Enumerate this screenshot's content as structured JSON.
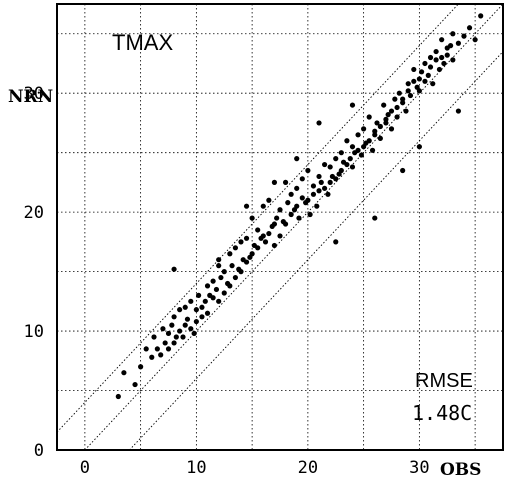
{
  "chart_data": {
    "type": "scatter",
    "title": "TMAX",
    "xlabel": "OBS",
    "ylabel": "NRN",
    "xlim": [
      -2.5,
      37.5
    ],
    "ylim": [
      0,
      37.5
    ],
    "x_ticks": [
      "0",
      "10",
      "20",
      "30"
    ],
    "y_ticks": [
      "0",
      "10",
      "20",
      "30"
    ],
    "grid": true,
    "reference_lines": [
      "1:1",
      "+4",
      "-4"
    ],
    "stat_label": "RMSE",
    "stat_value": "1.48C",
    "series": [
      {
        "x": [
          3.0,
          3.5,
          4.5,
          5.0,
          5.5,
          6.0,
          6.2,
          6.5,
          6.8,
          7.0,
          7.2,
          7.5,
          7.5,
          7.8,
          8.0,
          8.0,
          8.2,
          8.5,
          8.5,
          8.8,
          9.0,
          9.0,
          9.2,
          9.5,
          9.5,
          9.8,
          10.0,
          10.0,
          10.2,
          10.5,
          10.5,
          10.8,
          11.0,
          11.0,
          11.2,
          11.5,
          11.5,
          11.8,
          12.0,
          12.0,
          12.2,
          12.5,
          12.5,
          12.8,
          13.0,
          13.0,
          13.2,
          13.5,
          13.5,
          13.8,
          14.0,
          14.0,
          14.2,
          14.5,
          14.5,
          14.8,
          15.0,
          15.0,
          15.2,
          15.5,
          15.5,
          15.8,
          16.0,
          16.0,
          16.2,
          16.5,
          16.5,
          16.8,
          17.0,
          17.0,
          17.2,
          17.5,
          17.5,
          17.8,
          18.0,
          18.0,
          18.2,
          18.5,
          18.5,
          18.8,
          19.0,
          19.0,
          19.2,
          19.5,
          19.5,
          19.8,
          20.0,
          20.0,
          20.2,
          20.5,
          20.5,
          20.8,
          21.0,
          21.0,
          21.2,
          21.5,
          21.5,
          21.8,
          22.0,
          22.0,
          22.2,
          22.5,
          22.5,
          22.8,
          23.0,
          23.0,
          23.2,
          23.5,
          23.5,
          23.8,
          24.0,
          24.0,
          24.2,
          24.5,
          24.5,
          24.8,
          25.0,
          25.0,
          25.2,
          25.5,
          25.5,
          25.8,
          26.0,
          26.0,
          26.2,
          26.5,
          26.5,
          26.8,
          27.0,
          27.0,
          27.2,
          27.5,
          27.5,
          27.8,
          28.0,
          28.0,
          28.2,
          28.5,
          28.5,
          28.8,
          29.0,
          29.0,
          29.2,
          29.5,
          29.5,
          29.8,
          30.0,
          30.0,
          30.2,
          30.5,
          30.5,
          30.8,
          31.0,
          31.0,
          31.2,
          31.5,
          31.5,
          31.8,
          32.0,
          32.0,
          32.2,
          32.5,
          32.5,
          32.8,
          33.0,
          33.0,
          33.5,
          34.0,
          34.5,
          35.0,
          35.5,
          12.0,
          8.0,
          17.0,
          14.5,
          24.0,
          21.0,
          26.0,
          19.0,
          22.5,
          28.5,
          30.0,
          33.5
        ],
        "y": [
          4.5,
          6.5,
          5.5,
          7.0,
          8.5,
          7.8,
          9.5,
          8.5,
          8.0,
          10.2,
          9.0,
          8.5,
          9.8,
          10.5,
          9.0,
          11.2,
          9.5,
          10.0,
          11.8,
          9.5,
          12.0,
          10.5,
          11.0,
          10.2,
          12.5,
          9.8,
          11.8,
          10.8,
          13.0,
          11.2,
          12.0,
          12.5,
          13.8,
          11.5,
          13.0,
          12.8,
          14.2,
          13.5,
          16.0,
          12.5,
          14.5,
          13.2,
          15.0,
          14.0,
          16.5,
          13.8,
          15.5,
          14.5,
          17.0,
          15.2,
          17.5,
          15.0,
          16.0,
          15.8,
          17.8,
          16.2,
          19.5,
          16.5,
          17.2,
          17.0,
          18.5,
          17.8,
          20.5,
          18.0,
          17.5,
          18.2,
          21.0,
          18.8,
          19.0,
          17.2,
          19.5,
          18.0,
          20.2,
          19.2,
          22.5,
          19.0,
          20.8,
          19.8,
          21.5,
          20.2,
          22.0,
          20.5,
          19.5,
          21.2,
          22.8,
          20.8,
          23.5,
          21.0,
          19.8,
          21.5,
          22.2,
          20.5,
          23.0,
          21.8,
          22.5,
          22.0,
          24.0,
          21.5,
          22.5,
          23.8,
          23.0,
          24.5,
          22.8,
          23.2,
          25.0,
          23.5,
          24.2,
          24.0,
          26.0,
          24.5,
          25.5,
          23.8,
          25.0,
          25.2,
          26.5,
          24.8,
          25.5,
          27.0,
          25.8,
          26.0,
          28.0,
          25.2,
          26.5,
          26.8,
          27.5,
          26.2,
          27.2,
          29.0,
          27.5,
          27.8,
          28.2,
          27.0,
          28.5,
          29.5,
          28.0,
          28.8,
          30.0,
          29.2,
          29.5,
          28.5,
          30.2,
          30.8,
          29.8,
          31.0,
          32.0,
          30.5,
          31.2,
          30.2,
          31.8,
          32.5,
          31.0,
          31.5,
          33.0,
          32.2,
          30.8,
          32.8,
          33.5,
          32.0,
          33.0,
          34.5,
          32.5,
          33.8,
          33.2,
          34.0,
          32.8,
          35.0,
          34.2,
          34.8,
          35.5,
          34.5,
          36.5,
          15.5,
          15.2,
          22.5,
          20.5,
          29.0,
          27.5,
          19.5,
          24.5,
          17.5,
          23.5,
          25.5,
          28.5
        ]
      }
    ]
  }
}
